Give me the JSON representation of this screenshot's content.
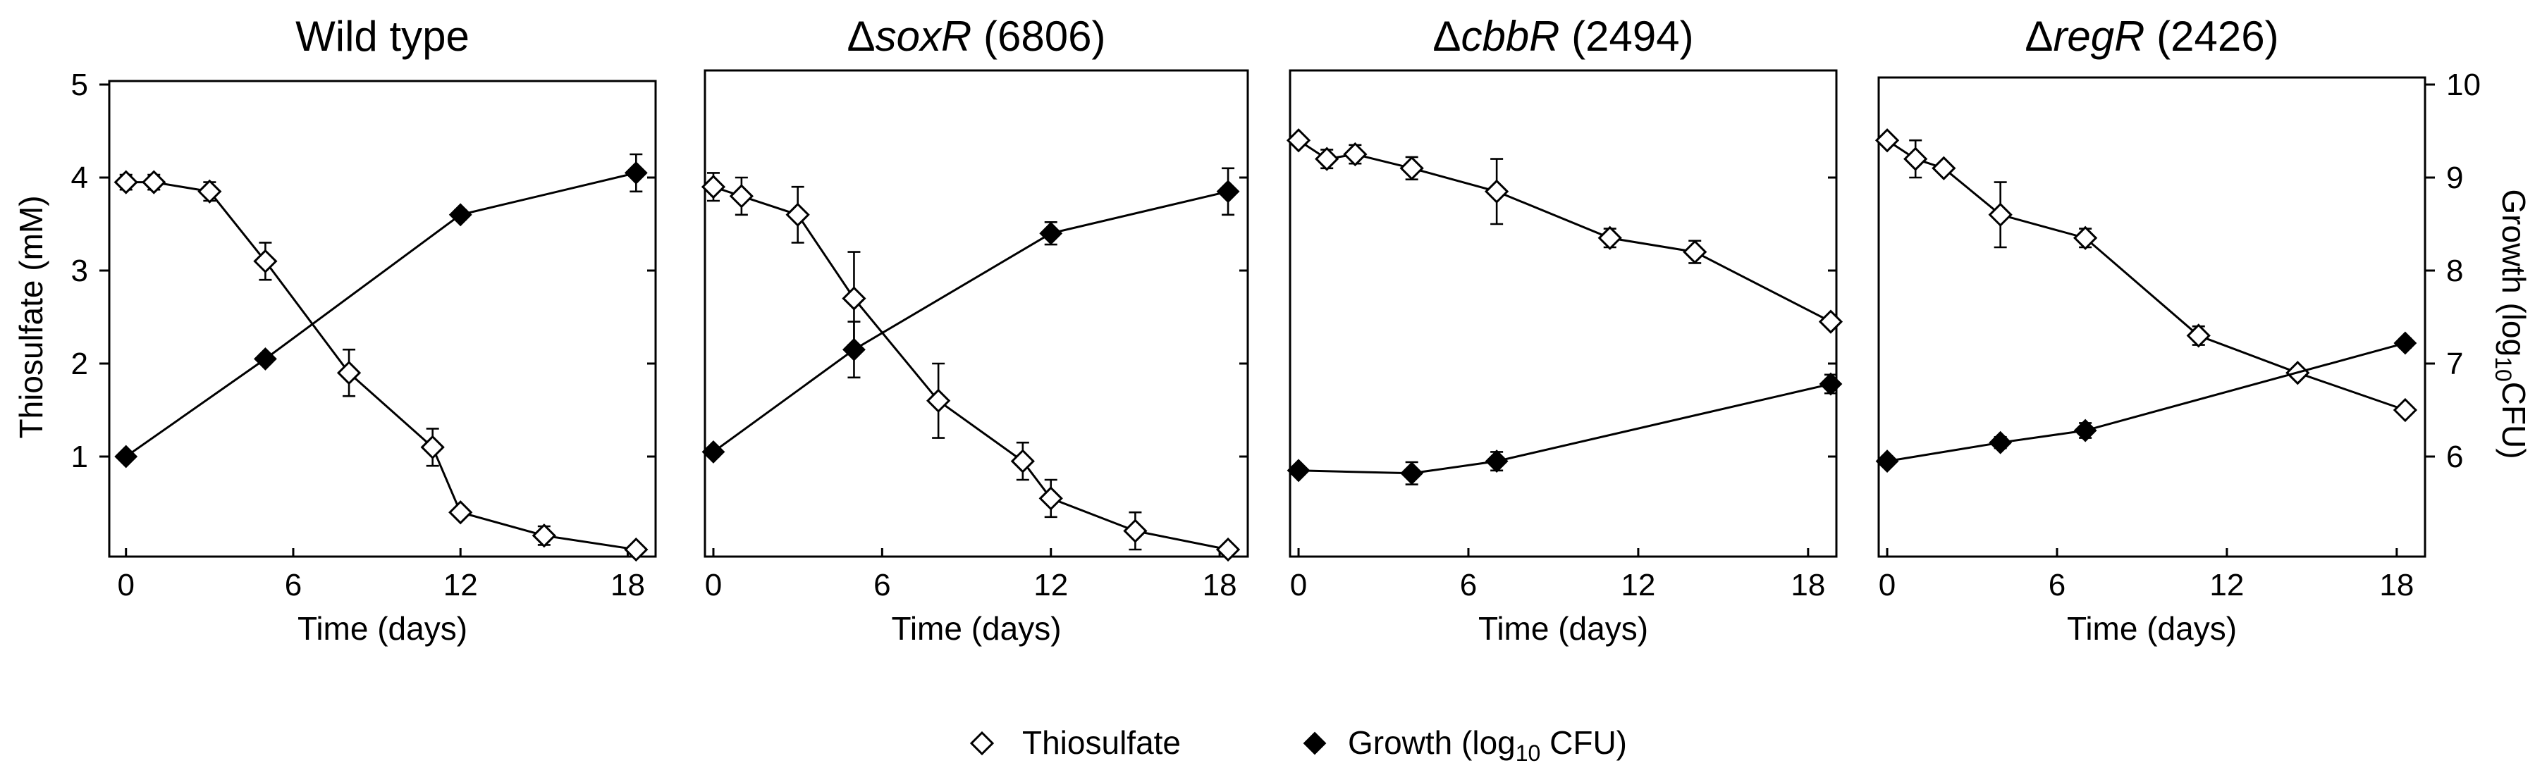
{
  "legend": {
    "thiosulfate_label": "Thiosulfate",
    "growth_prefix": "Growth (log",
    "growth_sub": "10",
    "growth_suffix": " CFU)"
  },
  "left_axis": {
    "label": "Thiosulfate (mM)",
    "range": [
      0,
      5
    ],
    "ticks": [
      "1",
      "2",
      "3",
      "4",
      "5"
    ]
  },
  "right_axis": {
    "label_prefix": "Growth (log",
    "label_sub": "10",
    "label_suffix": "CFU)",
    "range": [
      5,
      10
    ],
    "ticks": [
      "6",
      "7",
      "8",
      "9",
      "10"
    ]
  },
  "chart_data": [
    {
      "type": "line",
      "title": "Wild type",
      "title_parts": [
        {
          "text": "Wild type",
          "italic": false
        }
      ],
      "xlabel": "Time (days)",
      "ylabel": "Thiosulfate (mM)",
      "y2label": "Growth (log10 CFU)",
      "xlim": [
        -0.6,
        19
      ],
      "x_ticks": [
        "0",
        "6",
        "12",
        "18"
      ],
      "ylim": [
        0,
        5
      ],
      "y2lim": [
        5,
        10
      ],
      "series": [
        {
          "name": "Thiosulfate",
          "axis": "left",
          "marker": "open-diamond",
          "x": [
            0,
            1,
            3,
            5,
            8,
            11,
            12,
            15,
            18.3
          ],
          "values": [
            3.95,
            3.95,
            3.85,
            3.1,
            1.9,
            1.1,
            0.4,
            0.15,
            0.0
          ],
          "errors": [
            0.08,
            0.08,
            0.1,
            0.2,
            0.25,
            0.2,
            0.05,
            0.1,
            0.05
          ]
        },
        {
          "name": "Growth (log10 CFU)",
          "axis": "right",
          "marker": "filled-diamond",
          "x": [
            0,
            5,
            12,
            18.3
          ],
          "values": [
            6.0,
            7.05,
            8.6,
            9.05
          ],
          "errors": [
            0.04,
            0.05,
            0.05,
            0.2
          ]
        }
      ]
    },
    {
      "type": "line",
      "title": "ΔsoxR (6806)",
      "title_parts": [
        {
          "text": "Δ",
          "italic": false
        },
        {
          "text": "soxR",
          "italic": true
        },
        {
          "text": " (6806)",
          "italic": false
        }
      ],
      "xlabel": "Time (days)",
      "xlim": [
        -0.3,
        19
      ],
      "x_ticks": [
        "0",
        "6",
        "12",
        "18"
      ],
      "ylim": [
        0,
        5
      ],
      "y2lim": [
        5,
        10
      ],
      "series": [
        {
          "name": "Thiosulfate",
          "axis": "left",
          "marker": "open-diamond",
          "x": [
            0,
            1,
            3,
            5,
            8,
            11,
            12,
            15,
            18.3
          ],
          "values": [
            3.9,
            3.8,
            3.6,
            2.7,
            1.6,
            0.95,
            0.55,
            0.2,
            0.0
          ],
          "errors": [
            0.15,
            0.2,
            0.3,
            0.5,
            0.4,
            0.2,
            0.2,
            0.2,
            0.05
          ]
        },
        {
          "name": "Growth (log10 CFU)",
          "axis": "right",
          "marker": "filled-diamond",
          "x": [
            0,
            5,
            12,
            18.3
          ],
          "values": [
            6.05,
            7.15,
            8.4,
            8.85
          ],
          "errors": [
            0.05,
            0.3,
            0.12,
            0.25
          ]
        }
      ]
    },
    {
      "type": "line",
      "title": "ΔcbbR (2494)",
      "title_parts": [
        {
          "text": "Δ",
          "italic": false
        },
        {
          "text": "cbbR",
          "italic": true
        },
        {
          "text": " (2494)",
          "italic": false
        }
      ],
      "xlabel": "Time (days)",
      "xlim": [
        -0.3,
        19
      ],
      "x_ticks": [
        "0",
        "6",
        "12",
        "18"
      ],
      "ylim": [
        0,
        5
      ],
      "y2lim": [
        5,
        10
      ],
      "series": [
        {
          "name": "Thiosulfate",
          "axis": "left",
          "marker": "open-diamond",
          "x": [
            0,
            1,
            2,
            4,
            7,
            11,
            14,
            18.8
          ],
          "values": [
            4.4,
            4.2,
            4.25,
            4.1,
            3.85,
            3.35,
            3.2,
            2.45
          ],
          "errors": [
            0.05,
            0.1,
            0.1,
            0.12,
            0.35,
            0.1,
            0.12,
            0.05
          ]
        },
        {
          "name": "Growth (log10 CFU)",
          "axis": "right",
          "marker": "filled-diamond",
          "x": [
            0,
            4,
            7,
            18.8
          ],
          "values": [
            5.85,
            5.82,
            5.95,
            6.78
          ],
          "errors": [
            0.04,
            0.12,
            0.1,
            0.1
          ]
        }
      ]
    },
    {
      "type": "line",
      "title": "ΔregR (2426)",
      "title_parts": [
        {
          "text": "Δ",
          "italic": false
        },
        {
          "text": "regR",
          "italic": true
        },
        {
          "text": " (2426)",
          "italic": false
        }
      ],
      "xlabel": "Time (days)",
      "xlim": [
        -0.3,
        19
      ],
      "x_ticks": [
        "0",
        "6",
        "12",
        "18"
      ],
      "ylim": [
        0,
        5
      ],
      "y2lim": [
        5,
        10
      ],
      "series": [
        {
          "name": "Thiosulfate",
          "axis": "left",
          "marker": "open-diamond",
          "x": [
            0,
            1,
            2,
            4,
            7,
            11,
            14.5,
            18.3
          ],
          "values": [
            4.4,
            4.2,
            4.1,
            3.6,
            3.35,
            2.3,
            1.9,
            1.5
          ],
          "errors": [
            0.05,
            0.2,
            0.05,
            0.35,
            0.1,
            0.1,
            0.05,
            0.05
          ]
        },
        {
          "name": "Growth (log10 CFU)",
          "axis": "right",
          "marker": "filled-diamond",
          "x": [
            0,
            4,
            7,
            18.3
          ],
          "values": [
            5.95,
            6.15,
            6.28,
            7.22
          ],
          "errors": [
            0.05,
            0.06,
            0.08,
            0.05
          ]
        }
      ]
    }
  ]
}
